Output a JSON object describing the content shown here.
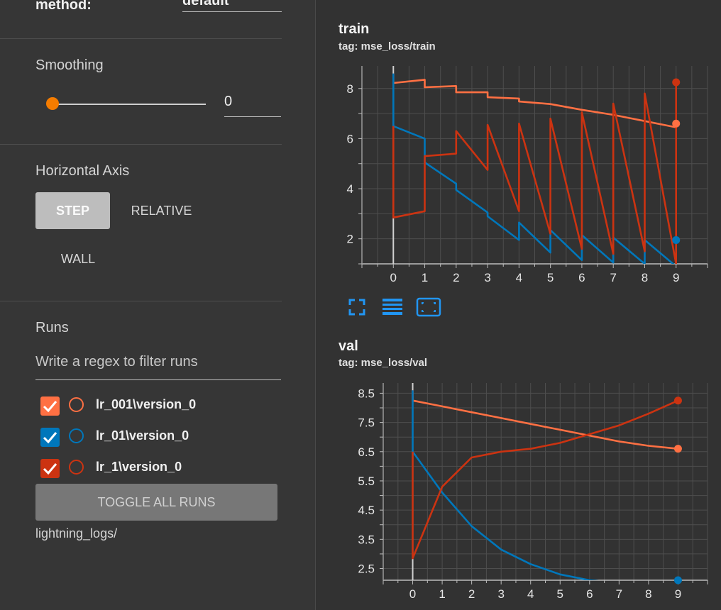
{
  "sidebar": {
    "method_label": "method:",
    "method_value": "default",
    "smoothing": {
      "label": "Smoothing",
      "value": "0",
      "slider_fraction": 0.0
    },
    "horizontal_axis": {
      "label": "Horizontal Axis",
      "options": [
        "STEP",
        "RELATIVE",
        "WALL"
      ],
      "selected": "STEP"
    },
    "runs": {
      "label": "Runs",
      "filter_placeholder": "Write a regex to filter runs",
      "items": [
        {
          "label": "lr_001\\version_0",
          "checked": true,
          "color": "#ff7043"
        },
        {
          "label": "lr_01\\version_0",
          "checked": true,
          "color": "#0077bb"
        },
        {
          "label": "lr_1\\version_0",
          "checked": true,
          "color": "#cc3311"
        }
      ],
      "toggle_label": "TOGGLE ALL RUNS",
      "logdir": "lightning_logs/"
    }
  },
  "charts": {
    "train": {
      "title": "train",
      "tag": "tag: mse_loss/train"
    },
    "val": {
      "title": "val",
      "tag": "tag: mse_loss/val"
    }
  },
  "chart_data": [
    {
      "type": "line",
      "title": "train",
      "x_ticks": [
        0,
        1,
        2,
        3,
        4,
        5,
        6,
        7,
        8,
        9
      ],
      "y_ticks": [
        2,
        4,
        6,
        8
      ],
      "xlim": [
        -1.0,
        10.0
      ],
      "ylim": [
        1.0,
        8.9
      ],
      "series": [
        {
          "name": "lr_001\\version_0",
          "color": "#ff7043",
          "points": [
            [
              0,
              8.6
            ],
            [
              0,
              8.22
            ],
            [
              1,
              8.35
            ],
            [
              1,
              8.05
            ],
            [
              2,
              8.1
            ],
            [
              2,
              7.85
            ],
            [
              3,
              7.85
            ],
            [
              3,
              7.65
            ],
            [
              4,
              7.6
            ],
            [
              4,
              7.48
            ],
            [
              5,
              7.38
            ],
            [
              6,
              7.15
            ],
            [
              7,
              6.95
            ],
            [
              8,
              6.7
            ],
            [
              9,
              6.45
            ],
            [
              9,
              6.6
            ]
          ]
        },
        {
          "name": "lr_01\\version_0",
          "color": "#0077bb",
          "points": [
            [
              0,
              8.6
            ],
            [
              0,
              6.5
            ],
            [
              1,
              6.0
            ],
            [
              1,
              5.05
            ],
            [
              2,
              4.2
            ],
            [
              2,
              3.95
            ],
            [
              3,
              3.05
            ],
            [
              3,
              2.9
            ],
            [
              4,
              1.95
            ],
            [
              4,
              2.65
            ],
            [
              5,
              1.45
            ],
            [
              5,
              2.35
            ],
            [
              6,
              1.15
            ],
            [
              6,
              2.15
            ],
            [
              7,
              1.05
            ],
            [
              7,
              2.05
            ],
            [
              8,
              1.0
            ],
            [
              8,
              1.95
            ],
            [
              9,
              0.9
            ],
            [
              9,
              1.95
            ]
          ]
        },
        {
          "name": "lr_1\\version_0",
          "color": "#cc3311",
          "points": [
            [
              0,
              6.5
            ],
            [
              0,
              2.85
            ],
            [
              1,
              3.1
            ],
            [
              1,
              5.3
            ],
            [
              2,
              5.4
            ],
            [
              2,
              6.3
            ],
            [
              3,
              4.75
            ],
            [
              3,
              6.55
            ],
            [
              4,
              3.1
            ],
            [
              4,
              6.6
            ],
            [
              5,
              2.2
            ],
            [
              5,
              6.8
            ],
            [
              6,
              1.6
            ],
            [
              6,
              7.05
            ],
            [
              7,
              1.4
            ],
            [
              7,
              7.4
            ],
            [
              8,
              1.5
            ],
            [
              8,
              7.8
            ],
            [
              9,
              1.0
            ],
            [
              9,
              8.25
            ]
          ]
        }
      ]
    },
    {
      "type": "line",
      "title": "val",
      "x_ticks": [
        0,
        1,
        2,
        3,
        4,
        5,
        6,
        7,
        8,
        9
      ],
      "y_ticks": [
        2.5,
        3.5,
        4.5,
        5.5,
        6.5,
        7.5,
        8.5
      ],
      "xlim": [
        -1.0,
        10.0
      ],
      "ylim": [
        2.1,
        8.85
      ],
      "series": [
        {
          "name": "lr_001\\version_0",
          "color": "#ff7043",
          "points": [
            [
              0,
              8.6
            ],
            [
              0,
              8.25
            ],
            [
              1,
              8.05
            ],
            [
              2,
              7.85
            ],
            [
              3,
              7.65
            ],
            [
              4,
              7.45
            ],
            [
              5,
              7.25
            ],
            [
              6,
              7.05
            ],
            [
              7,
              6.85
            ],
            [
              8,
              6.7
            ],
            [
              9,
              6.6
            ]
          ]
        },
        {
          "name": "lr_01\\version_0",
          "color": "#0077bb",
          "points": [
            [
              0,
              8.6
            ],
            [
              0,
              6.5
            ],
            [
              1,
              5.1
            ],
            [
              2,
              3.95
            ],
            [
              3,
              3.15
            ],
            [
              4,
              2.65
            ],
            [
              5,
              2.3
            ],
            [
              6,
              2.1
            ],
            [
              7,
              2.0
            ],
            [
              8,
              1.95
            ],
            [
              9,
              1.95
            ]
          ]
        },
        {
          "name": "lr_1\\version_0",
          "color": "#cc3311",
          "points": [
            [
              0,
              6.5
            ],
            [
              0,
              2.85
            ],
            [
              1,
              5.3
            ],
            [
              2,
              6.3
            ],
            [
              3,
              6.5
            ],
            [
              4,
              6.6
            ],
            [
              5,
              6.8
            ],
            [
              6,
              7.1
            ],
            [
              7,
              7.4
            ],
            [
              8,
              7.8
            ],
            [
              9,
              8.25
            ]
          ]
        }
      ]
    }
  ],
  "toolbar_icons": [
    "fullscreen-icon",
    "data-selection-icon",
    "fit-domain-icon"
  ],
  "colors": {
    "accent": "#f57c00",
    "selection_blue": "#2196f3"
  }
}
